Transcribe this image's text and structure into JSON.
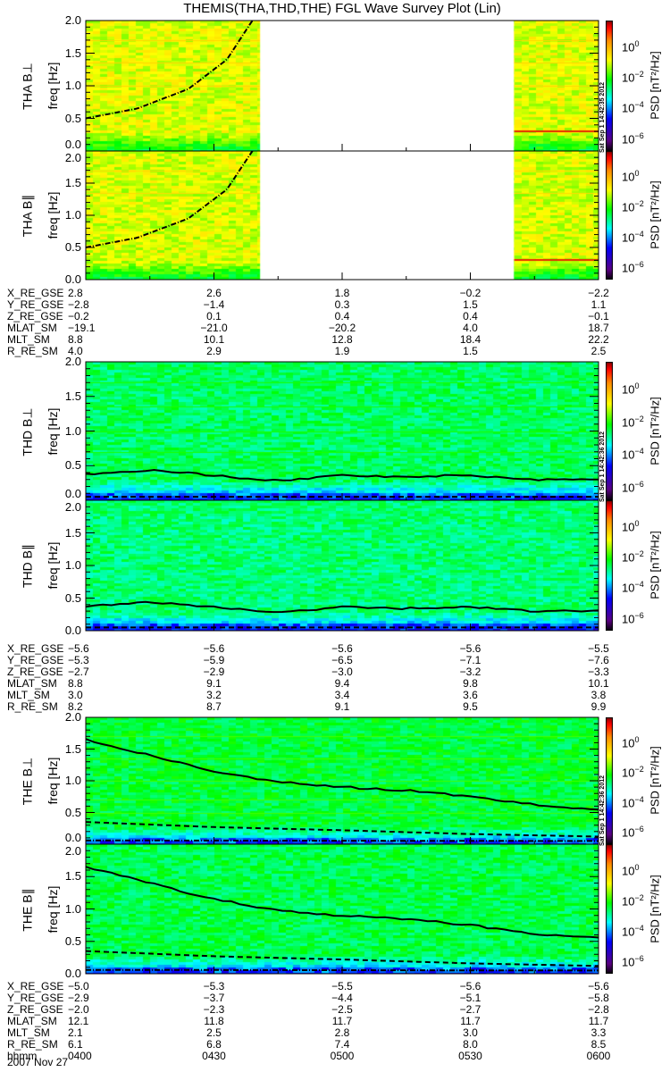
{
  "title": "THEMIS(THA,THD,THE) FGL Wave Survey Plot (Lin)",
  "date": "2007 Nov 27",
  "chart_data": {
    "type": "heatmap",
    "title": "THEMIS(THA,THD,THE) FGL Wave Survey Plot (Lin)",
    "xlabel": "hhmm",
    "x_ticks": [
      "0400",
      "0430",
      "0500",
      "0530",
      "0600"
    ],
    "xlim_hours": [
      4.0,
      6.0
    ],
    "ylim": [
      0,
      2.0
    ],
    "y_ticks": [
      "0.0",
      "0.5",
      "1.0",
      "1.5",
      "2.0"
    ],
    "colorbar": {
      "label": "PSD [nT²/Hz]",
      "ticks": [
        "10^0",
        "10^-2",
        "10^-4",
        "10^-6"
      ],
      "range_log10": [
        -7,
        1.5
      ],
      "scale": "log"
    },
    "panels": [
      {
        "name": "THA B⊥",
        "ylabel": "freq [Hz]",
        "stamp": "Sat Sep  1 14:42:35 2012",
        "data_gap_hours": [
          4.68,
          5.67
        ],
        "curves": [
          {
            "style": "dashdot",
            "t": [
              4.0,
              4.2,
              4.4,
              4.55,
              4.65
            ],
            "f": [
              0.5,
              0.65,
              0.95,
              1.4,
              2.0
            ]
          }
        ],
        "lines_hz": [
          1.0,
          1.35,
          1.7
        ],
        "low_line_hz": 0.32,
        "level": -1.2
      },
      {
        "name": "THA B∥",
        "ylabel": "freq [Hz]",
        "stamp": "",
        "data_gap_hours": [
          4.68,
          5.67
        ],
        "curves": [
          {
            "style": "dashdot",
            "t": [
              4.0,
              4.2,
              4.4,
              4.55,
              4.65
            ],
            "f": [
              0.5,
              0.65,
              0.95,
              1.4,
              2.0
            ]
          }
        ],
        "lines_hz": [
          1.35,
          1.7
        ],
        "low_line_hz": 0.32,
        "level": -1.25
      },
      {
        "name": "THD B⊥",
        "ylabel": "freq [Hz]",
        "stamp": "Sat Sep  1 14:42:36 2012",
        "curves": [
          {
            "style": "solid",
            "t": [
              4.0,
              4.25,
              4.5,
              4.75,
              5.0,
              5.25,
              5.5,
              5.75,
              6.0
            ],
            "f": [
              0.38,
              0.44,
              0.36,
              0.28,
              0.36,
              0.34,
              0.36,
              0.3,
              0.3
            ]
          },
          {
            "style": "dash",
            "t": [
              4.0,
              6.0
            ],
            "f": [
              0.05,
              0.05
            ]
          }
        ],
        "lines_hz": [
          0.7,
          1.0,
          1.35,
          1.7
        ],
        "level": -2.8
      },
      {
        "name": "THD B∥",
        "ylabel": "freq [Hz]",
        "stamp": "",
        "curves": [
          {
            "style": "solid",
            "t": [
              4.0,
              4.25,
              4.5,
              4.75,
              5.0,
              5.25,
              5.5,
              5.75,
              6.0
            ],
            "f": [
              0.38,
              0.44,
              0.36,
              0.28,
              0.36,
              0.34,
              0.36,
              0.3,
              0.3
            ]
          },
          {
            "style": "dash",
            "t": [
              4.0,
              6.0
            ],
            "f": [
              0.05,
              0.05
            ]
          }
        ],
        "lines_hz": [],
        "level": -2.9
      },
      {
        "name": "THE B⊥",
        "ylabel": "freq [Hz]",
        "stamp": "Sat Sep  1 14:42:36 2012",
        "curves": [
          {
            "style": "solid",
            "t": [
              4.0,
              4.25,
              4.5,
              4.75,
              5.0,
              5.25,
              5.5,
              5.75,
              6.0
            ],
            "f": [
              1.65,
              1.4,
              1.15,
              0.98,
              0.9,
              0.85,
              0.75,
              0.62,
              0.55
            ]
          },
          {
            "style": "dash",
            "t": [
              4.0,
              4.5,
              5.0,
              5.5,
              6.0
            ],
            "f": [
              0.35,
              0.27,
              0.22,
              0.16,
              0.12
            ]
          },
          {
            "style": "dashdot",
            "t": [
              4.0,
              6.0
            ],
            "f": [
              0.06,
              0.05
            ]
          }
        ],
        "lines_hz": [
          0.5,
          0.7,
          1.0,
          1.35,
          1.7
        ],
        "level": -2.6
      },
      {
        "name": "THE B∥",
        "ylabel": "freq [Hz]",
        "stamp": "",
        "curves": [
          {
            "style": "solid",
            "t": [
              4.0,
              4.25,
              4.5,
              4.75,
              5.0,
              5.25,
              5.5,
              5.75,
              6.0
            ],
            "f": [
              1.65,
              1.4,
              1.15,
              0.98,
              0.9,
              0.85,
              0.75,
              0.62,
              0.55
            ]
          },
          {
            "style": "dash",
            "t": [
              4.0,
              4.5,
              5.0,
              5.5,
              6.0
            ],
            "f": [
              0.35,
              0.27,
              0.22,
              0.16,
              0.12
            ]
          },
          {
            "style": "dashdot",
            "t": [
              4.0,
              6.0
            ],
            "f": [
              0.06,
              0.05
            ]
          }
        ],
        "lines_hz": [],
        "level": -2.7
      }
    ],
    "ephemeris": [
      {
        "rows": [
          [
            "X_RE_GSE",
            "2.8",
            "2.6",
            "1.8",
            "−0.2",
            "−2.2"
          ],
          [
            "Y_RE_GSE",
            "−2.8",
            "−1.4",
            "0.3",
            "1.5",
            "1.1"
          ],
          [
            "Z_RE_GSE",
            "−0.2",
            "0.1",
            "0.4",
            "0.4",
            "−0.1"
          ],
          [
            "MLAT_SM",
            "−19.1",
            "−21.0",
            "−20.2",
            "4.0",
            "18.7"
          ],
          [
            "MLT_SM",
            "8.8",
            "10.1",
            "12.8",
            "18.4",
            "22.2"
          ],
          [
            "R_RE_SM",
            "4.0",
            "2.9",
            "1.9",
            "1.5",
            "2.5"
          ]
        ]
      },
      {
        "rows": [
          [
            "X_RE_GSE",
            "−5.6",
            "−5.6",
            "−5.6",
            "−5.6",
            "−5.5"
          ],
          [
            "Y_RE_GSE",
            "−5.3",
            "−5.9",
            "−6.5",
            "−7.1",
            "−7.6"
          ],
          [
            "Z_RE_GSE",
            "−2.7",
            "−2.9",
            "−3.0",
            "−3.2",
            "−3.3"
          ],
          [
            "MLAT_SM",
            "8.8",
            "9.1",
            "9.4",
            "9.8",
            "10.1"
          ],
          [
            "MLT_SM",
            "3.0",
            "3.2",
            "3.4",
            "3.6",
            "3.8"
          ],
          [
            "R_RE_SM",
            "8.2",
            "8.7",
            "9.1",
            "9.5",
            "9.9"
          ]
        ]
      },
      {
        "rows": [
          [
            "X_RE_GSE",
            "−5.0",
            "−5.3",
            "−5.5",
            "−5.6",
            "−5.6"
          ],
          [
            "Y_RE_GSE",
            "−2.9",
            "−3.7",
            "−4.4",
            "−5.1",
            "−5.8"
          ],
          [
            "Z_RE_GSE",
            "−2.0",
            "−2.3",
            "−2.5",
            "−2.7",
            "−2.8"
          ],
          [
            "MLAT_SM",
            "12.1",
            "11.8",
            "11.7",
            "11.7",
            "11.7"
          ],
          [
            "MLT_SM",
            "2.1",
            "2.5",
            "2.8",
            "3.0",
            "3.3"
          ],
          [
            "R_RE_SM",
            "6.1",
            "6.8",
            "7.4",
            "8.0",
            "8.5"
          ],
          [
            "hhmm",
            "0400",
            "0430",
            "0500",
            "0530",
            "0600"
          ]
        ]
      }
    ]
  }
}
